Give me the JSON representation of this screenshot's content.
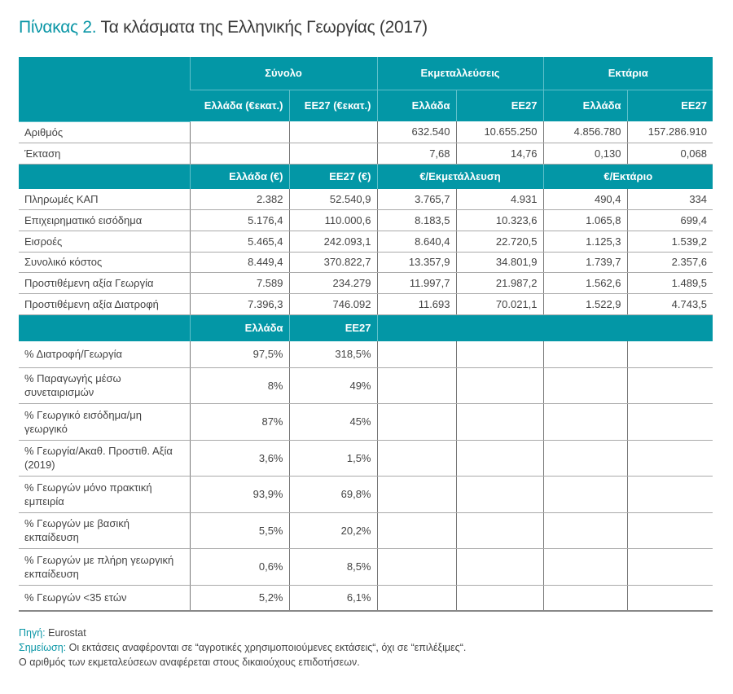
{
  "title": {
    "number": "Πίνακας 2.",
    "text": "Τα κλάσματα της Ελληνικής Γεωργίας (2017)"
  },
  "groups": [
    "Σύνολο",
    "Εκμεταλλεύσεις",
    "Εκτάρια"
  ],
  "subheaders": [
    "Ελλάδα (€εκατ.)",
    "ΕΕ27 (€εκατ.)",
    "Ελλάδα",
    "ΕΕ27",
    "Ελλάδα",
    "ΕΕ27"
  ],
  "section1": [
    {
      "label": "Αριθμός",
      "values": [
        "",
        "",
        "632.540",
        "10.655.250",
        "4.856.780",
        "157.286.910"
      ]
    },
    {
      "label": "Έκταση",
      "values": [
        "",
        "",
        "7,68",
        "14,76",
        "0,130",
        "0,068"
      ]
    }
  ],
  "header3": [
    "Ελλάδα (€)",
    "ΕΕ27 (€)",
    "€/Εκμετάλλευση",
    "€/Εκτάριο"
  ],
  "section2": [
    {
      "label": "Πληρωμές ΚΑΠ",
      "values": [
        "2.382",
        "52.540,9",
        "3.765,7",
        "4.931",
        "490,4",
        "334"
      ]
    },
    {
      "label": "Επιχειρηματικό εισόδημα",
      "values": [
        "5.176,4",
        "110.000,6",
        "8.183,5",
        "10.323,6",
        "1.065,8",
        "699,4"
      ]
    },
    {
      "label": "Εισροές",
      "values": [
        "5.465,4",
        "242.093,1",
        "8.640,4",
        "22.720,5",
        "1.125,3",
        "1.539,2"
      ]
    },
    {
      "label": "Συνολικό κόστος",
      "values": [
        "8.449,4",
        "370.822,7",
        "13.357,9",
        "34.801,9",
        "1.739,7",
        "2.357,6"
      ]
    },
    {
      "label": "Προστιθέμενη αξία Γεωργία",
      "values": [
        "7.589",
        "234.279",
        "11.997,7",
        "21.987,2",
        "1.562,6",
        "1.489,5"
      ]
    },
    {
      "label": "Προστιθέμενη αξία Διατροφή",
      "values": [
        "7.396,3",
        "746.092",
        "11.693",
        "70.021,1",
        "1.522,9",
        "4.743,5"
      ]
    }
  ],
  "header4": [
    "Ελλάδα",
    "ΕΕ27"
  ],
  "section3": [
    {
      "label": "% Διατροφή/Γεωργία",
      "values": [
        "97,5%",
        "318,5%"
      ]
    },
    {
      "label": "% Παραγωγής μέσω συνεταιρισμών",
      "values": [
        "8%",
        "49%"
      ]
    },
    {
      "label": "% Γεωργικό εισόδημα/μη γεωργικό",
      "values": [
        "87%",
        "45%"
      ]
    },
    {
      "label": "% Γεωργία/Ακαθ. Προστιθ. Αξία (2019)",
      "values": [
        "3,6%",
        "1,5%"
      ]
    },
    {
      "label": "% Γεωργών μόνο πρακτική εμπειρία",
      "values": [
        "93,9%",
        "69,8%"
      ]
    },
    {
      "label": "% Γεωργών με βασική εκπαίδευση",
      "values": [
        "5,5%",
        "20,2%"
      ]
    },
    {
      "label": "% Γεωργών με πλήρη γεωργική εκπαίδευση",
      "values": [
        "0,6%",
        "8,5%"
      ]
    },
    {
      "label": "% Γεωργών <35 ετών",
      "values": [
        "5,2%",
        "6,1%"
      ]
    }
  ],
  "footer": {
    "source_label": "Πηγή:",
    "source": "Eurostat",
    "note_label": "Σημείωση:",
    "note": "Οι εκτάσεις αναφέρονται σε “αγροτικές χρησιμοποιούμενες εκτάσεις“, όχι σε “επιλέξιμες“.",
    "note2": "Ο αριθμός των εκμεταλεύσεων αναφέρεται στους δικαιούχους επιδοτήσεων."
  }
}
